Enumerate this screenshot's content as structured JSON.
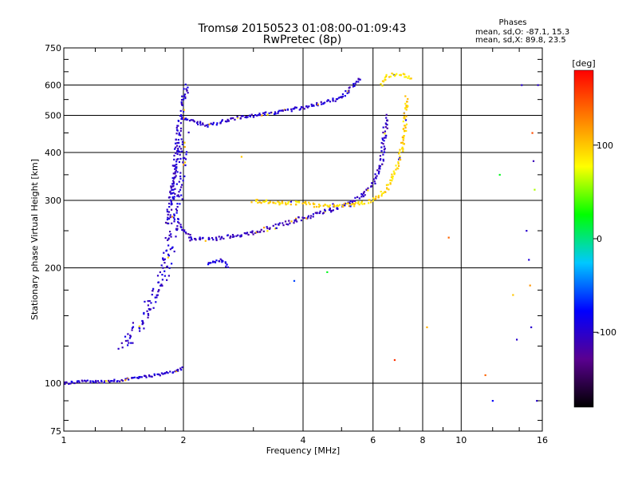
{
  "chart_data": {
    "type": "scatter",
    "title": "Tromsø 20150523 01:08:00-01:09:43",
    "subtitle": "RwPretec (8p)",
    "xlabel": "Frequency [MHz]",
    "ylabel": "Stationary phase Virtual Height [km]",
    "x_scale": "log",
    "y_scale": "log",
    "xlim": [
      1,
      16
    ],
    "ylim": [
      75,
      750
    ],
    "x_ticks": [
      1,
      2,
      4,
      6,
      8,
      10,
      16
    ],
    "y_ticks": [
      75,
      100,
      200,
      300,
      400,
      500,
      600,
      750
    ],
    "grid": true,
    "phase_stats": {
      "heading": "Phases",
      "o_line": "mean, sd,O: -87.1, 15.3",
      "x_line": "mean, sd,X: 89.8, 23.5"
    },
    "colorbar": {
      "label": "[deg]",
      "ticks": [
        100,
        0,
        -100
      ],
      "range": [
        -180,
        180
      ],
      "colors": [
        "#000000",
        "#5a0090",
        "#0000ff",
        "#00c8ff",
        "#00ff00",
        "#ffff00",
        "#ff8000",
        "#ff0000"
      ]
    },
    "traces": [
      {
        "x": [
          1.0,
          1.1,
          1.25,
          1.4,
          1.6,
          1.8,
          1.95,
          2.0
        ],
        "y": [
          100,
          101,
          101,
          102,
          104,
          106,
          108,
          110
        ],
        "phase": -100,
        "spread": 3
      },
      {
        "x": [
          1.4,
          1.5,
          1.6,
          1.7,
          1.8,
          1.85,
          1.9,
          1.95,
          2.0
        ],
        "y": [
          125,
          135,
          150,
          170,
          200,
          230,
          280,
          340,
          440
        ],
        "phase": -100,
        "spread": 14
      },
      {
        "x": [
          1.82,
          1.88,
          1.92,
          1.96,
          2.0,
          2.05
        ],
        "y": [
          260,
          330,
          400,
          480,
          560,
          600
        ],
        "phase": -100,
        "spread": 6
      },
      {
        "x": [
          2.0,
          2.3,
          2.8,
          3.5,
          4.2,
          5.0,
          5.6
        ],
        "y": [
          490,
          470,
          495,
          510,
          530,
          555,
          630
        ],
        "phase": -100,
        "spread": 4
      },
      {
        "x": [
          1.95,
          2.1,
          2.4,
          3.0,
          3.5,
          4.0,
          4.5,
          5.0,
          5.5,
          6.0,
          6.3,
          6.5
        ],
        "y": [
          260,
          238,
          238,
          248,
          258,
          270,
          280,
          290,
          302,
          330,
          380,
          500
        ],
        "phase": -105,
        "spread": 5
      },
      {
        "x": [
          3.0,
          3.5,
          4.0,
          4.5,
          5.0,
          5.5,
          6.0,
          6.5,
          7.0,
          7.2,
          7.3
        ],
        "y": [
          300,
          296,
          295,
          290,
          291,
          294,
          300,
          320,
          380,
          450,
          560
        ],
        "phase": 95,
        "spread": 5
      },
      {
        "x": [
          6.3,
          6.5,
          6.7,
          7.0,
          7.3,
          7.5
        ],
        "y": [
          600,
          630,
          640,
          640,
          635,
          620
        ],
        "phase": 90,
        "spread": 4
      },
      {
        "x": [
          2.3,
          2.5,
          2.6
        ],
        "y": [
          205,
          210,
          200
        ],
        "phase": -95,
        "spread": 3
      }
    ],
    "noise_points": [
      {
        "x": 14.6,
        "y": 250,
        "phase": -100
      },
      {
        "x": 14.8,
        "y": 210,
        "phase": -95
      },
      {
        "x": 14.9,
        "y": 180,
        "phase": 120
      },
      {
        "x": 15.0,
        "y": 140,
        "phase": -100
      },
      {
        "x": 15.1,
        "y": 450,
        "phase": 150
      },
      {
        "x": 15.2,
        "y": 380,
        "phase": -110
      },
      {
        "x": 15.3,
        "y": 320,
        "phase": 60
      },
      {
        "x": 15.5,
        "y": 90,
        "phase": -100
      },
      {
        "x": 15.6,
        "y": 600,
        "phase": -100
      },
      {
        "x": 13.5,
        "y": 170,
        "phase": 100
      },
      {
        "x": 12.5,
        "y": 350,
        "phase": 20
      },
      {
        "x": 11.5,
        "y": 105,
        "phase": 140
      },
      {
        "x": 8.2,
        "y": 140,
        "phase": 110
      },
      {
        "x": 9.3,
        "y": 240,
        "phase": 140
      },
      {
        "x": 3.8,
        "y": 185,
        "phase": -60
      },
      {
        "x": 2.8,
        "y": 390,
        "phase": 100
      },
      {
        "x": 4.6,
        "y": 195,
        "phase": 20
      },
      {
        "x": 6.8,
        "y": 115,
        "phase": 160
      },
      {
        "x": 12.0,
        "y": 90,
        "phase": -80
      },
      {
        "x": 14.2,
        "y": 600,
        "phase": -100
      },
      {
        "x": 13.8,
        "y": 130,
        "phase": -100
      }
    ]
  }
}
